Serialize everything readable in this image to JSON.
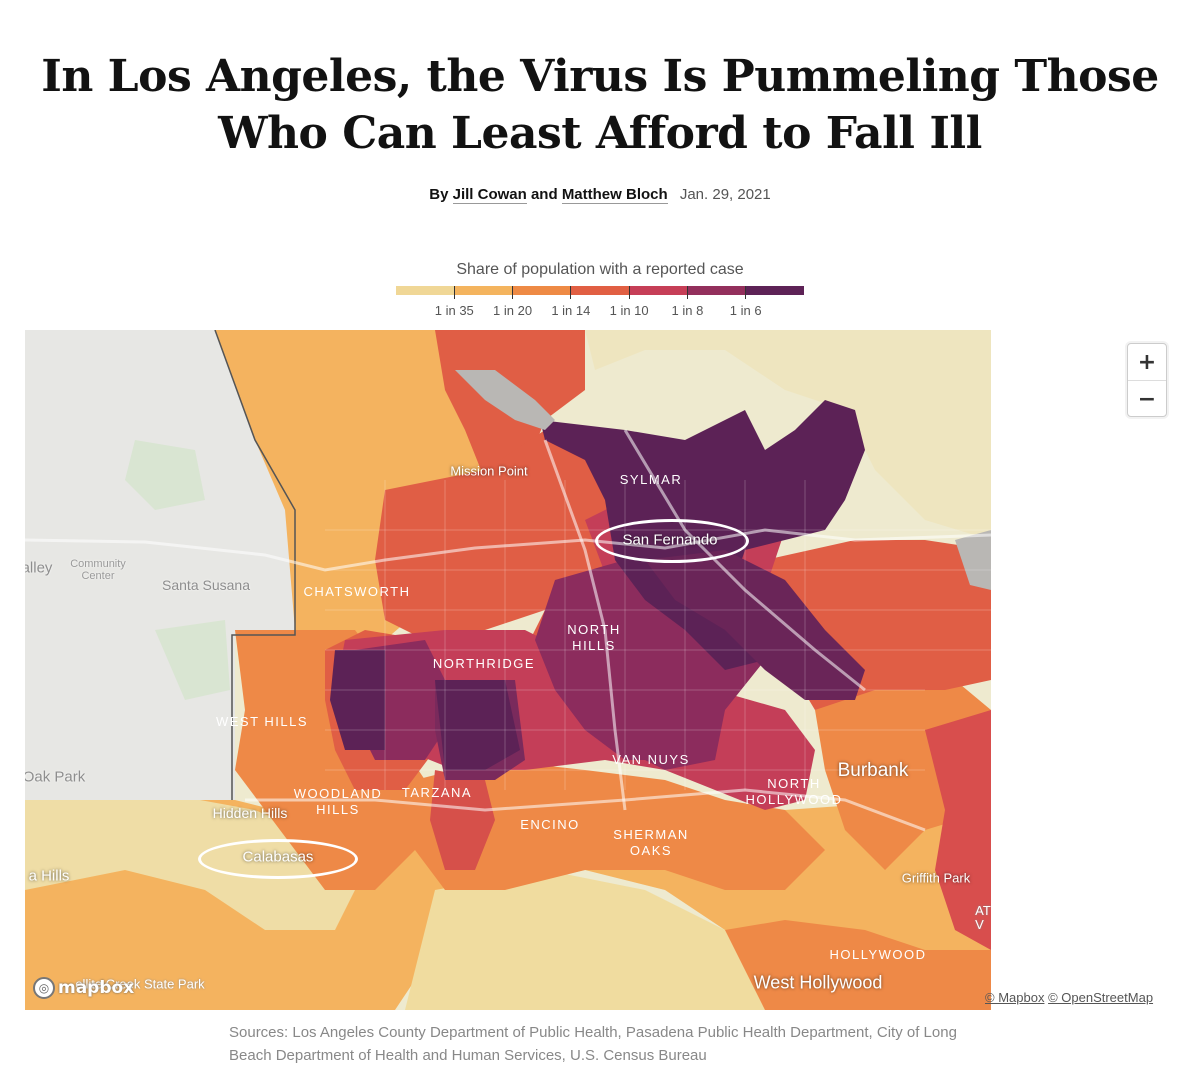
{
  "headline": {
    "line1": "In Los Angeles, the Virus Is Pummeling Those",
    "line2": "Who Can Least Afford to Fall Ill"
  },
  "byline": {
    "prefix": "By",
    "author1": "Jill Cowan",
    "conjunction": "and",
    "author2": "Matthew Bloch",
    "date": "Jan. 29, 2021"
  },
  "legend": {
    "title": "Share of population with a reported case",
    "colors": [
      "#f0d796",
      "#f4b45e",
      "#ee8a45",
      "#e15f43",
      "#c63e57",
      "#932f5c",
      "#5d2256"
    ],
    "labels": [
      "1 in 35",
      "1 in 20",
      "1 in 14",
      "1 in 10",
      "1 in 8",
      "1 in 6"
    ]
  },
  "map": {
    "neighborhood_labels": {
      "sylmar": "SYLMAR",
      "chatsworth": "CHATSWORTH",
      "north_hills": "NORTH\nHILLS",
      "northridge": "NORTHRIDGE",
      "west_hills": "WEST HILLS",
      "van_nuys": "VAN NUYS",
      "north_hollywood": "NORTH\nHOLLYWOOD",
      "woodland_hills": "WOODLAND\nHILLS",
      "tarzana": "TARZANA",
      "encino": "ENCINO",
      "sherman_oaks": "SHERMAN\nOAKS",
      "hollywood": "HOLLYWOOD"
    },
    "city_labels": {
      "mission_point": "Mission Point",
      "san_fernando": "San Fernando",
      "calabasas": "Calabasas",
      "hidden_hills": "Hidden Hills",
      "burbank": "Burbank",
      "griffith_park": "Griffith Park",
      "west_hollywood": "West Hollywood"
    },
    "basemap_labels": {
      "valley": "alley",
      "community_center": "Community\nCenter",
      "santa_susana": "Santa Susana",
      "oak_park": "Oak Park",
      "hills": "a Hills",
      "state_park": "ellite Creek State Park",
      "atv": "AT\nV"
    },
    "highlight_colors": {
      "ring": "#ffffff"
    }
  },
  "controls": {
    "zoom_in": "+",
    "zoom_out": "−"
  },
  "attribution": {
    "logo": "mapbox",
    "mapbox": "© Mapbox",
    "osm": "© OpenStreetMap"
  },
  "sources": "Sources: Los Angeles County Department of Public Health, Pasadena Public Health Department, City of Long Beach Department of Health and Human Services, U.S. Census Bureau"
}
